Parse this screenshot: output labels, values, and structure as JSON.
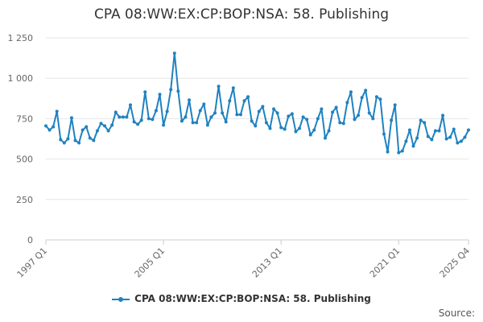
{
  "chart_data": {
    "type": "line",
    "title": "CPA 08:WW:EX:CP:BOP:NSA: 58. Publishing",
    "xlabel": "",
    "ylabel": "",
    "ylim": [
      0,
      1250
    ],
    "y_ticks": [
      "0",
      "250",
      "500",
      "750",
      "1 000",
      "1 250"
    ],
    "x_ticks": [
      "1997 Q1",
      "2005 Q1",
      "2013 Q1",
      "2021 Q1",
      "2025 Q4"
    ],
    "grid": true,
    "legend_position": "bottom",
    "source_label": "Source:",
    "series": [
      {
        "name": "CPA 08:WW:EX:CP:BOP:NSA: 58. Publishing",
        "color": "#1f82c0",
        "x": [
          "1997 Q1",
          "1997 Q2",
          "1997 Q3",
          "1997 Q4",
          "1998 Q1",
          "1998 Q2",
          "1998 Q3",
          "1998 Q4",
          "1999 Q1",
          "1999 Q2",
          "1999 Q3",
          "1999 Q4",
          "2000 Q1",
          "2000 Q2",
          "2000 Q3",
          "2000 Q4",
          "2001 Q1",
          "2001 Q2",
          "2001 Q3",
          "2001 Q4",
          "2002 Q1",
          "2002 Q2",
          "2002 Q3",
          "2002 Q4",
          "2003 Q1",
          "2003 Q2",
          "2003 Q3",
          "2003 Q4",
          "2004 Q1",
          "2004 Q2",
          "2004 Q3",
          "2004 Q4",
          "2005 Q1",
          "2005 Q2",
          "2005 Q3",
          "2005 Q4",
          "2006 Q1",
          "2006 Q2",
          "2006 Q3",
          "2006 Q4",
          "2007 Q1",
          "2007 Q2",
          "2007 Q3",
          "2007 Q4",
          "2008 Q1",
          "2008 Q2",
          "2008 Q3",
          "2008 Q4",
          "2009 Q1",
          "2009 Q2",
          "2009 Q3",
          "2009 Q4",
          "2010 Q1",
          "2010 Q2",
          "2010 Q3",
          "2010 Q4",
          "2011 Q1",
          "2011 Q2",
          "2011 Q3",
          "2011 Q4",
          "2012 Q1",
          "2012 Q2",
          "2012 Q3",
          "2012 Q4",
          "2013 Q1",
          "2013 Q2",
          "2013 Q3",
          "2013 Q4",
          "2014 Q1",
          "2014 Q2",
          "2014 Q3",
          "2014 Q4",
          "2015 Q1",
          "2015 Q2",
          "2015 Q3",
          "2015 Q4",
          "2016 Q1",
          "2016 Q2",
          "2016 Q3",
          "2016 Q4",
          "2017 Q1",
          "2017 Q2",
          "2017 Q3",
          "2017 Q4",
          "2018 Q1",
          "2018 Q2",
          "2018 Q3",
          "2018 Q4",
          "2019 Q1",
          "2019 Q2",
          "2019 Q3",
          "2019 Q4",
          "2020 Q1",
          "2020 Q2",
          "2020 Q3",
          "2020 Q4",
          "2021 Q1",
          "2021 Q2",
          "2021 Q3",
          "2021 Q4",
          "2022 Q1",
          "2022 Q2",
          "2022 Q3",
          "2022 Q4",
          "2023 Q1",
          "2023 Q2",
          "2023 Q3",
          "2023 Q4",
          "2024 Q1",
          "2024 Q2",
          "2024 Q3",
          "2024 Q4",
          "2025 Q1",
          "2025 Q2",
          "2025 Q3",
          "2025 Q4"
        ],
        "values": [
          705,
          680,
          700,
          795,
          620,
          600,
          625,
          755,
          615,
          600,
          680,
          700,
          630,
          615,
          675,
          720,
          705,
          675,
          710,
          790,
          760,
          760,
          760,
          835,
          730,
          715,
          740,
          915,
          750,
          745,
          800,
          900,
          710,
          795,
          930,
          1155,
          920,
          735,
          760,
          865,
          725,
          725,
          800,
          840,
          710,
          760,
          785,
          950,
          785,
          730,
          860,
          940,
          775,
          775,
          860,
          885,
          735,
          705,
          795,
          825,
          725,
          690,
          810,
          785,
          695,
          685,
          765,
          780,
          670,
          690,
          760,
          745,
          650,
          680,
          750,
          810,
          630,
          675,
          790,
          820,
          725,
          720,
          850,
          915,
          745,
          770,
          880,
          925,
          785,
          750,
          885,
          870,
          655,
          545,
          740,
          835,
          540,
          550,
          610,
          680,
          580,
          630,
          740,
          725,
          640,
          620,
          675,
          675,
          770,
          625,
          635,
          685,
          600,
          610,
          635,
          680
        ]
      }
    ]
  }
}
